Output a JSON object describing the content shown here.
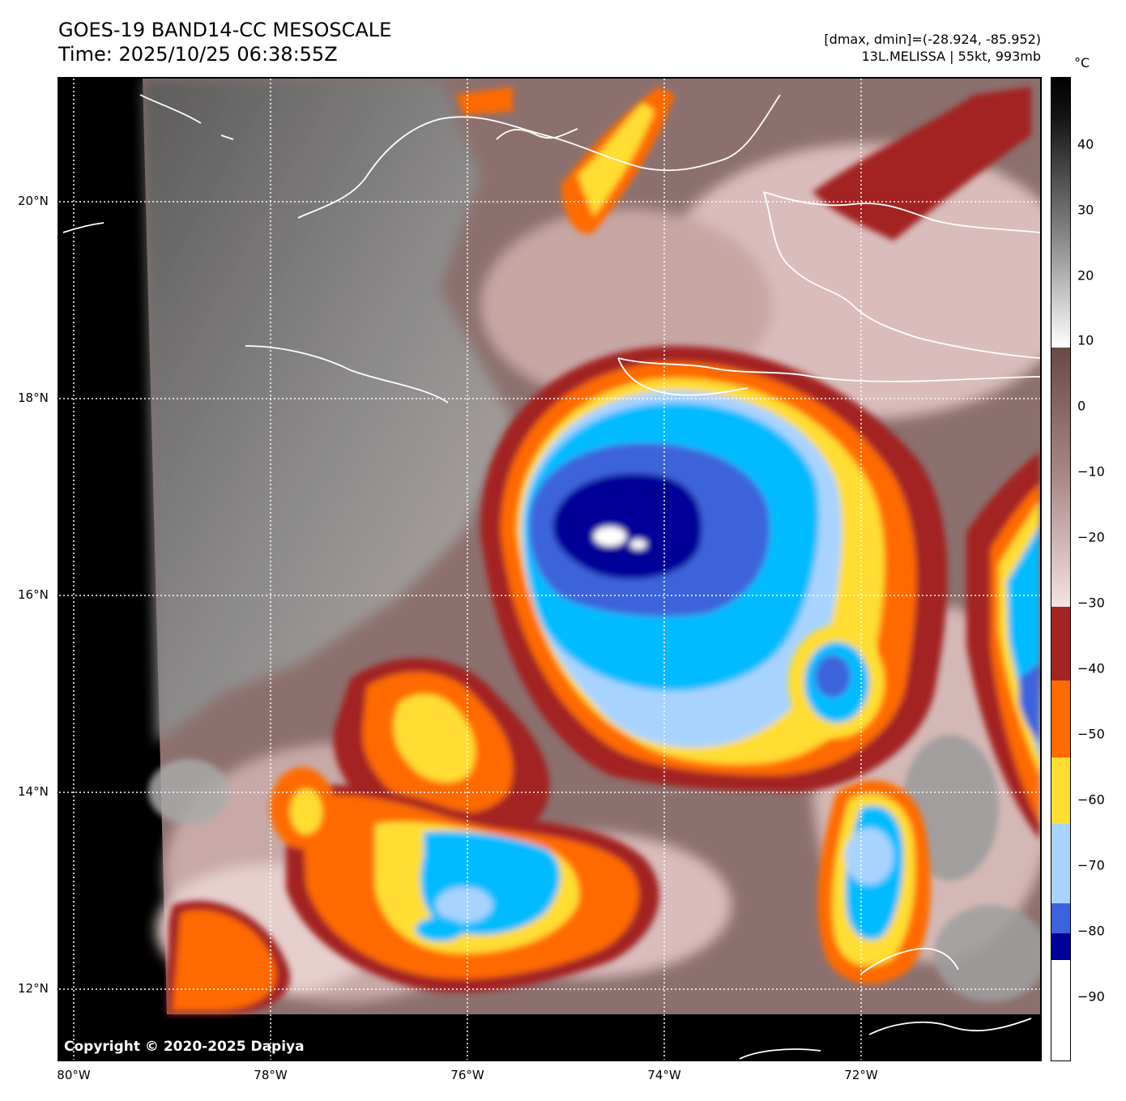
{
  "header": {
    "title_line1": "GOES-19 BAND14-CC MESOSCALE",
    "title_line2": "Time: 2025/10/25 06:38:55Z",
    "range": "[dmax, dmin]=(-28.924, -85.952)",
    "storm": "13L.MELISSA | 55kt, 993mb"
  },
  "map": {
    "copyright": "Copyright © 2020-2025 Dapiya",
    "lat_labels": [
      "20°N",
      "18°N",
      "16°N",
      "14°N",
      "12°N"
    ],
    "lon_labels": [
      "80°W",
      "78°W",
      "76°W",
      "74°W",
      "72°W"
    ]
  },
  "colorbar": {
    "unit": "°C",
    "ticks": [
      "40",
      "30",
      "20",
      "10",
      "0",
      "−10",
      "−20",
      "−30",
      "−40",
      "−50",
      "−60",
      "−70",
      "−80",
      "−90"
    ],
    "colors": {
      "warm_top": "#000000",
      "gray_mid": "#888888",
      "brown": "#7a5856",
      "pink": "#f3dcdc",
      "dark_red": "#a32424",
      "orange": "#ff6a00",
      "yellow": "#ffdd33",
      "light_blue": "#a8d3ff",
      "cyan": "#00bbff",
      "royal_blue": "#3c63db",
      "navy": "#000099",
      "white_cold": "#ffffff"
    }
  }
}
